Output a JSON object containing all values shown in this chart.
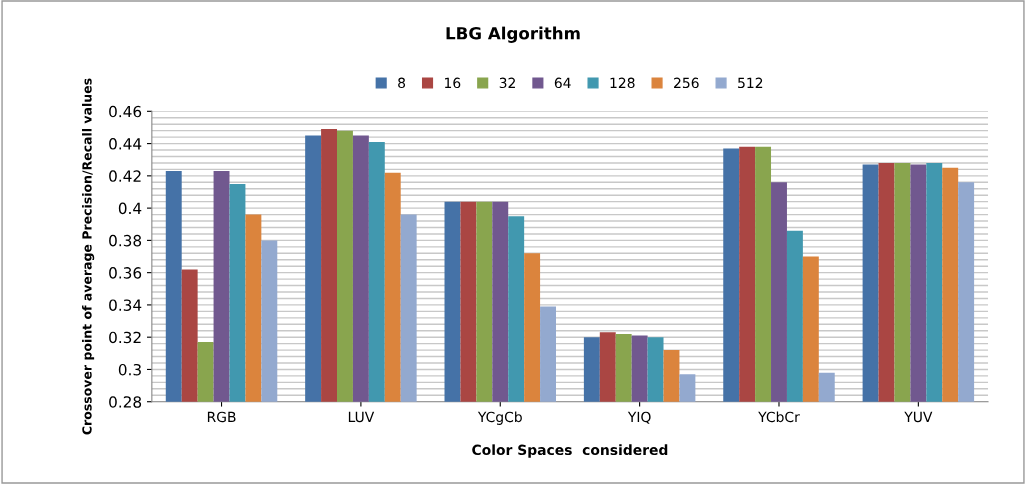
{
  "chart_data": {
    "type": "bar",
    "title": "LBG Algorithm",
    "xlabel": "Color Spaces  considered",
    "ylabel": "Crossover point of average Precision/Recall values",
    "categories": [
      "RGB",
      "LUV",
      "YCgCb",
      "YIQ",
      "YCbCr",
      "YUV"
    ],
    "series": [
      {
        "name": "8",
        "color": "#4572a7",
        "values": [
          0.423,
          0.445,
          0.404,
          0.32,
          0.437,
          0.427
        ]
      },
      {
        "name": "16",
        "color": "#aa4643",
        "values": [
          0.362,
          0.449,
          0.404,
          0.323,
          0.438,
          0.428
        ]
      },
      {
        "name": "32",
        "color": "#89a54e",
        "values": [
          0.317,
          0.448,
          0.404,
          0.322,
          0.438,
          0.428
        ]
      },
      {
        "name": "64",
        "color": "#71588f",
        "values": [
          0.423,
          0.445,
          0.404,
          0.321,
          0.416,
          0.427
        ]
      },
      {
        "name": "128",
        "color": "#4198af",
        "values": [
          0.415,
          0.441,
          0.395,
          0.32,
          0.386,
          0.428
        ]
      },
      {
        "name": "256",
        "color": "#db843d",
        "values": [
          0.396,
          0.422,
          0.372,
          0.312,
          0.37,
          0.425
        ]
      },
      {
        "name": "512",
        "color": "#93a9cf",
        "values": [
          0.38,
          0.396,
          0.339,
          0.297,
          0.298,
          0.416
        ]
      }
    ],
    "ylim": [
      0.28,
      0.46
    ],
    "yticks": [
      0.28,
      {
        "value": 0.284,
        "label": null
      },
      {
        "value": 0.288,
        "label": null
      },
      {
        "value": 0.292,
        "label": null
      },
      {
        "value": 0.296,
        "label": null
      },
      0.3,
      {
        "value": 0.304,
        "label": null
      },
      {
        "value": 0.308,
        "label": null
      },
      {
        "value": 0.312,
        "label": null
      },
      {
        "value": 0.316,
        "label": null
      },
      0.32,
      {
        "value": 0.324,
        "label": null
      },
      {
        "value": 0.328,
        "label": null
      },
      {
        "value": 0.332,
        "label": null
      },
      {
        "value": 0.336,
        "label": null
      },
      0.34,
      {
        "value": 0.344,
        "label": null
      },
      {
        "value": 0.348,
        "label": null
      },
      {
        "value": 0.352,
        "label": null
      },
      {
        "value": 0.356,
        "label": null
      },
      0.36,
      {
        "value": 0.364,
        "label": null
      },
      {
        "value": 0.368,
        "label": null
      },
      {
        "value": 0.372,
        "label": null
      },
      {
        "value": 0.376,
        "label": null
      },
      0.38,
      {
        "value": 0.384,
        "label": null
      },
      {
        "value": 0.388,
        "label": null
      },
      {
        "value": 0.392,
        "label": null
      },
      {
        "value": 0.396,
        "label": null
      },
      0.4,
      {
        "value": 0.404,
        "label": null
      },
      {
        "value": 0.408,
        "label": null
      },
      {
        "value": 0.412,
        "label": null
      },
      {
        "value": 0.416,
        "label": null
      },
      0.42,
      {
        "value": 0.424,
        "label": null
      },
      {
        "value": 0.428,
        "label": null
      },
      {
        "value": 0.432,
        "label": null
      },
      {
        "value": 0.436,
        "label": null
      },
      0.44,
      {
        "value": 0.444,
        "label": null
      },
      {
        "value": 0.448,
        "label": null
      },
      {
        "value": 0.452,
        "label": null
      },
      {
        "value": 0.456,
        "label": null
      },
      0.46
    ],
    "grid": "y",
    "legend": "top"
  }
}
